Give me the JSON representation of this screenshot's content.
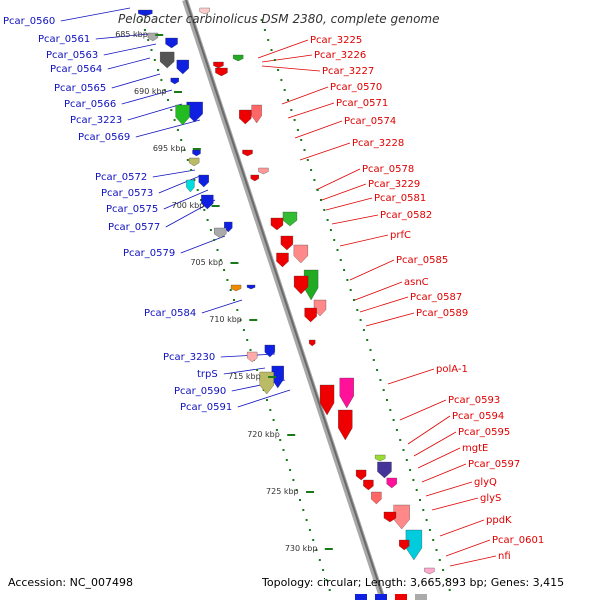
{
  "title": "Pelobacter carbinolicus DSM 2380, complete genome",
  "footer": {
    "accession": "Accession: NC_007498",
    "summary": "Topology: circular; Length: 3,665,893 bp; Genes: 3,415"
  },
  "colors": {
    "backbone": "#a0a0a0",
    "tick": "#1a7a1a",
    "forward_label": "#1010c0",
    "reverse_label": "#e00000",
    "forward_gene": "#1020e0",
    "reverse_gene": "#ee0000"
  },
  "ticks": [
    "685 kbp",
    "690 kbp",
    "695 kbp",
    "700 kbp",
    "705 kbp",
    "710 kbp",
    "715 kbp",
    "720 kbp",
    "725 kbp",
    "730 kbp"
  ],
  "left_labels": [
    "Pcar_0560",
    "Pcar_0561",
    "Pcar_0563",
    "Pcar_0564",
    "Pcar_0565",
    "Pcar_0566",
    "Pcar_3223",
    "Pcar_0569",
    "Pcar_0572",
    "Pcar_0573",
    "Pcar_0575",
    "Pcar_0577",
    "Pcar_0579",
    "Pcar_0584",
    "Pcar_3230",
    "trpS",
    "Pcar_0590",
    "Pcar_0591"
  ],
  "right_labels": [
    "Pcar_3225",
    "Pcar_3226",
    "Pcar_3227",
    "Pcar_0570",
    "Pcar_0571",
    "Pcar_0574",
    "Pcar_3228",
    "Pcar_0578",
    "Pcar_3229",
    "Pcar_0581",
    "Pcar_0582",
    "prfC",
    "Pcar_0585",
    "asnC",
    "Pcar_0587",
    "Pcar_0589",
    "polA-1",
    "Pcar_0593",
    "Pcar_0594",
    "Pcar_0595",
    "mgtE",
    "Pcar_0597",
    "glyQ",
    "glyS",
    "ppdK",
    "Pcar_0601",
    "nfi"
  ]
}
